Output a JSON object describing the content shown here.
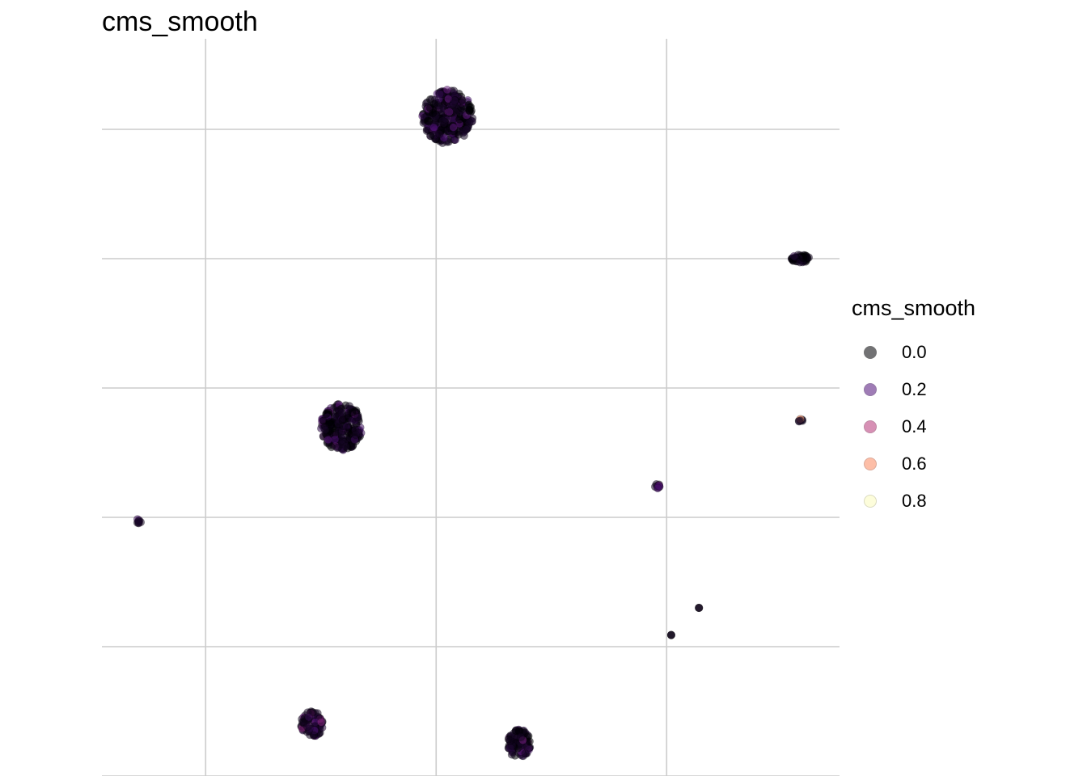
{
  "chart_data": {
    "type": "scatter",
    "title": "cms_smooth",
    "xlabel": "",
    "ylabel": "",
    "grid": true,
    "axis_ticks_shown": false,
    "xlim": [
      -0.45,
      2.75
    ],
    "ylim": [
      0.0,
      5.7
    ],
    "x_gridlines": [
      0,
      1,
      2
    ],
    "y_gridlines": [
      0,
      1,
      2,
      3,
      4,
      5
    ],
    "color_scale": {
      "name": "cms_smooth",
      "legend_position": "right",
      "breaks": [
        0.0,
        0.2,
        0.4,
        0.6,
        0.8
      ],
      "break_labels": [
        "0.0",
        "0.2",
        "0.4",
        "0.6",
        "0.8"
      ],
      "colors": [
        "#000004",
        "#51127c",
        "#b73779",
        "#fc8961",
        "#fcfdbf"
      ]
    },
    "clusters": [
      {
        "x": 1.05,
        "y": 5.1,
        "spread_x": 0.11,
        "spread_y": 0.21,
        "n": 320,
        "mean_value": 0.08
      },
      {
        "x": 0.59,
        "y": 2.7,
        "spread_x": 0.09,
        "spread_y": 0.18,
        "n": 260,
        "mean_value": 0.08
      },
      {
        "x": 0.46,
        "y": 0.4,
        "spread_x": 0.05,
        "spread_y": 0.1,
        "n": 90,
        "mean_value": 0.14
      },
      {
        "x": 1.36,
        "y": 0.25,
        "spread_x": 0.05,
        "spread_y": 0.11,
        "n": 100,
        "mean_value": 0.14
      },
      {
        "x": 2.58,
        "y": 4.0,
        "spread_x": 0.04,
        "spread_y": 0.03,
        "n": 40,
        "mean_value": 0.05
      },
      {
        "x": 2.58,
        "y": 2.75,
        "spread_x": 0.01,
        "spread_y": 0.01,
        "n": 8,
        "mean_value": 0.55
      },
      {
        "x": 1.96,
        "y": 2.24,
        "spread_x": 0.01,
        "spread_y": 0.02,
        "n": 10,
        "mean_value": 0.15
      },
      {
        "x": -0.29,
        "y": 1.97,
        "spread_x": 0.01,
        "spread_y": 0.02,
        "n": 8,
        "mean_value": 0.2
      },
      {
        "x": 2.14,
        "y": 1.3,
        "spread_x": 0.0,
        "spread_y": 0.0,
        "n": 3,
        "mean_value": 0.0
      },
      {
        "x": 2.02,
        "y": 1.09,
        "spread_x": 0.0,
        "spread_y": 0.0,
        "n": 3,
        "mean_value": 0.0
      }
    ]
  }
}
